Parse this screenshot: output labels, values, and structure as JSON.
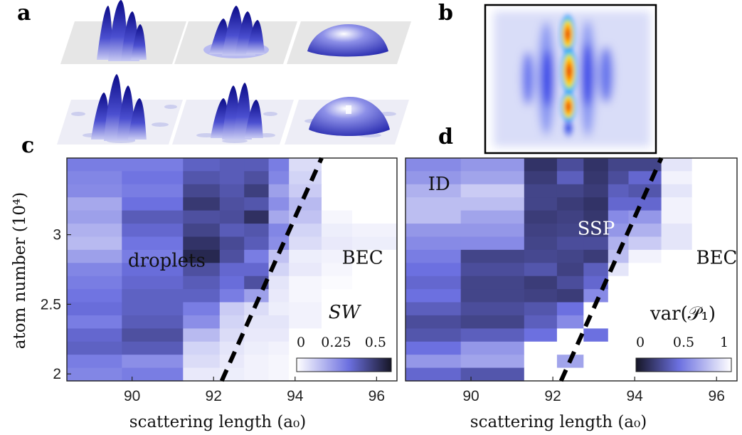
{
  "panel_labels": {
    "a": "a",
    "b": "b",
    "c": "c",
    "d": "d"
  },
  "colors": {
    "dark": "#222244",
    "mid": "#5a5fd6",
    "light": "#ffffff",
    "boundary": "#000000"
  },
  "chart_data": [
    {
      "panel": "c",
      "type": "heatmap",
      "xlabel": "scattering length (a₀)",
      "ylabel": "atom number (10⁴)",
      "x_ticks": [
        "90",
        "92",
        "94",
        "96"
      ],
      "y_ticks": [
        "2",
        "2.5",
        "3"
      ],
      "xlim": [
        88.4,
        96.5
      ],
      "ylim": [
        1.95,
        3.55
      ],
      "x_edges": [
        88.4,
        89.75,
        91.25,
        92.15,
        92.75,
        93.35,
        93.85,
        94.65,
        95.4,
        96.5
      ],
      "rows": 17,
      "region_labels": [
        {
          "text": "droplets",
          "x": 89.9,
          "y": 2.77,
          "color": "#111111"
        },
        {
          "text": "BEC",
          "x": 95.15,
          "y": 2.79,
          "color": "#111111"
        }
      ],
      "colorbar": {
        "title": "SW",
        "ticks": [
          "0",
          "0.25",
          "0.5"
        ],
        "range": [
          0,
          0.6
        ],
        "reversed": false
      },
      "boundary": {
        "x": [
          92.2,
          94.65
        ],
        "y": [
          1.95,
          3.55
        ],
        "style": "dashed"
      },
      "values": [
        [
          0.3,
          0.3,
          0.38,
          0.4,
          0.4,
          0.3,
          0.08,
          0.0,
          0.0
        ],
        [
          0.28,
          0.32,
          0.42,
          0.4,
          0.44,
          0.28,
          0.1,
          0.0,
          0.0
        ],
        [
          0.27,
          0.3,
          0.47,
          0.42,
          0.5,
          0.22,
          0.12,
          0.0,
          0.0
        ],
        [
          0.2,
          0.33,
          0.52,
          0.44,
          0.42,
          0.26,
          0.16,
          0.0,
          0.0
        ],
        [
          0.22,
          0.4,
          0.44,
          0.45,
          0.55,
          0.2,
          0.14,
          0.02,
          0.0
        ],
        [
          0.18,
          0.36,
          0.48,
          0.4,
          0.42,
          0.28,
          0.1,
          0.04,
          0.03
        ],
        [
          0.16,
          0.32,
          0.54,
          0.46,
          0.4,
          0.26,
          0.08,
          0.05,
          0.04
        ],
        [
          0.22,
          0.3,
          0.58,
          0.44,
          0.3,
          0.14,
          0.04,
          0.03,
          0.0
        ],
        [
          0.28,
          0.34,
          0.44,
          0.36,
          0.36,
          0.1,
          0.05,
          0.02,
          0.0
        ],
        [
          0.3,
          0.36,
          0.4,
          0.34,
          0.44,
          0.06,
          0.02,
          0.01,
          0.0
        ],
        [
          0.32,
          0.38,
          0.38,
          0.3,
          0.22,
          0.05,
          0.02,
          0.0,
          0.0
        ],
        [
          0.34,
          0.38,
          0.3,
          0.12,
          0.08,
          0.04,
          0.03,
          0.0,
          0.0
        ],
        [
          0.3,
          0.4,
          0.26,
          0.1,
          0.06,
          0.06,
          0.03,
          0.0,
          0.0
        ],
        [
          0.36,
          0.44,
          0.16,
          0.08,
          0.05,
          0.05,
          0.0,
          0.0,
          0.0
        ],
        [
          0.38,
          0.4,
          0.1,
          0.06,
          0.04,
          0.03,
          0.0,
          0.0,
          0.0
        ],
        [
          0.3,
          0.26,
          0.08,
          0.05,
          0.03,
          0.02,
          0.0,
          0.0,
          0.0
        ],
        [
          0.28,
          0.3,
          0.05,
          0.04,
          0.03,
          0.02,
          0.0,
          0.0,
          0.0
        ]
      ]
    },
    {
      "panel": "d",
      "type": "heatmap",
      "xlabel": "scattering length (a₀)",
      "ylabel": "",
      "x_ticks": [
        "90",
        "92",
        "94",
        "96"
      ],
      "y_ticks": [],
      "xlim": [
        88.4,
        96.5
      ],
      "ylim": [
        1.95,
        3.55
      ],
      "x_edges": [
        88.4,
        89.75,
        91.3,
        92.1,
        92.75,
        93.35,
        93.85,
        94.65,
        95.4,
        96.5
      ],
      "rows": 17,
      "region_labels": [
        {
          "text": "ID",
          "x": 88.95,
          "y": 3.32,
          "color": "#111111"
        },
        {
          "text": "SSP",
          "x": 92.6,
          "y": 3.0,
          "color": "#ffffff"
        },
        {
          "text": "BEC",
          "x": 95.5,
          "y": 2.79,
          "color": "#111111"
        }
      ],
      "colorbar": {
        "title": "var(𝒫₁)",
        "ticks": [
          "0",
          "0.5",
          "1"
        ],
        "range": [
          0,
          1
        ],
        "reversed": true
      },
      "boundary": {
        "x": [
          92.2,
          94.65
        ],
        "y": [
          1.95,
          3.55
        ],
        "style": "dashed"
      },
      "values": [
        [
          0.55,
          0.6,
          0.1,
          0.25,
          0.1,
          0.2,
          0.2,
          0.9,
          1.0
        ],
        [
          0.6,
          0.65,
          0.15,
          0.35,
          0.12,
          0.25,
          0.4,
          0.95,
          1.0
        ],
        [
          0.7,
          0.8,
          0.2,
          0.2,
          0.15,
          0.35,
          0.3,
          0.9,
          1.0
        ],
        [
          0.75,
          0.75,
          0.2,
          0.15,
          0.1,
          0.4,
          0.4,
          0.95,
          1.0
        ],
        [
          0.75,
          0.65,
          0.15,
          0.18,
          0.12,
          0.55,
          0.6,
          0.95,
          1.0
        ],
        [
          0.6,
          0.6,
          0.18,
          0.2,
          0.15,
          0.6,
          0.7,
          0.9,
          1.0
        ],
        [
          0.55,
          0.55,
          0.2,
          0.25,
          0.25,
          0.7,
          0.8,
          0.9,
          1.0
        ],
        [
          0.5,
          0.2,
          0.22,
          0.2,
          0.15,
          0.75,
          0.95,
          1.0,
          1.0
        ],
        [
          0.45,
          0.25,
          0.3,
          0.18,
          0.35,
          0.9,
          1.0,
          1.0,
          1.0
        ],
        [
          0.4,
          0.2,
          0.15,
          0.25,
          0.4,
          1.0,
          1.0,
          1.0,
          1.0
        ],
        [
          0.45,
          0.2,
          0.18,
          0.15,
          0.55,
          1.0,
          1.0,
          1.0,
          1.0
        ],
        [
          0.35,
          0.25,
          0.3,
          0.45,
          1.0,
          1.0,
          1.0,
          1.0,
          1.0
        ],
        [
          0.25,
          0.2,
          0.35,
          0.55,
          1.0,
          1.0,
          1.0,
          1.0,
          1.0
        ],
        [
          0.3,
          0.35,
          0.45,
          1.0,
          0.45,
          1.0,
          1.0,
          1.0,
          1.0
        ],
        [
          0.45,
          0.6,
          1.0,
          1.0,
          1.0,
          1.0,
          1.0,
          1.0,
          1.0
        ],
        [
          0.6,
          0.65,
          1.0,
          0.65,
          1.0,
          1.0,
          1.0,
          1.0,
          1.0
        ],
        [
          0.4,
          0.3,
          1.0,
          1.0,
          1.0,
          1.0,
          1.0,
          1.0,
          1.0
        ]
      ]
    }
  ]
}
